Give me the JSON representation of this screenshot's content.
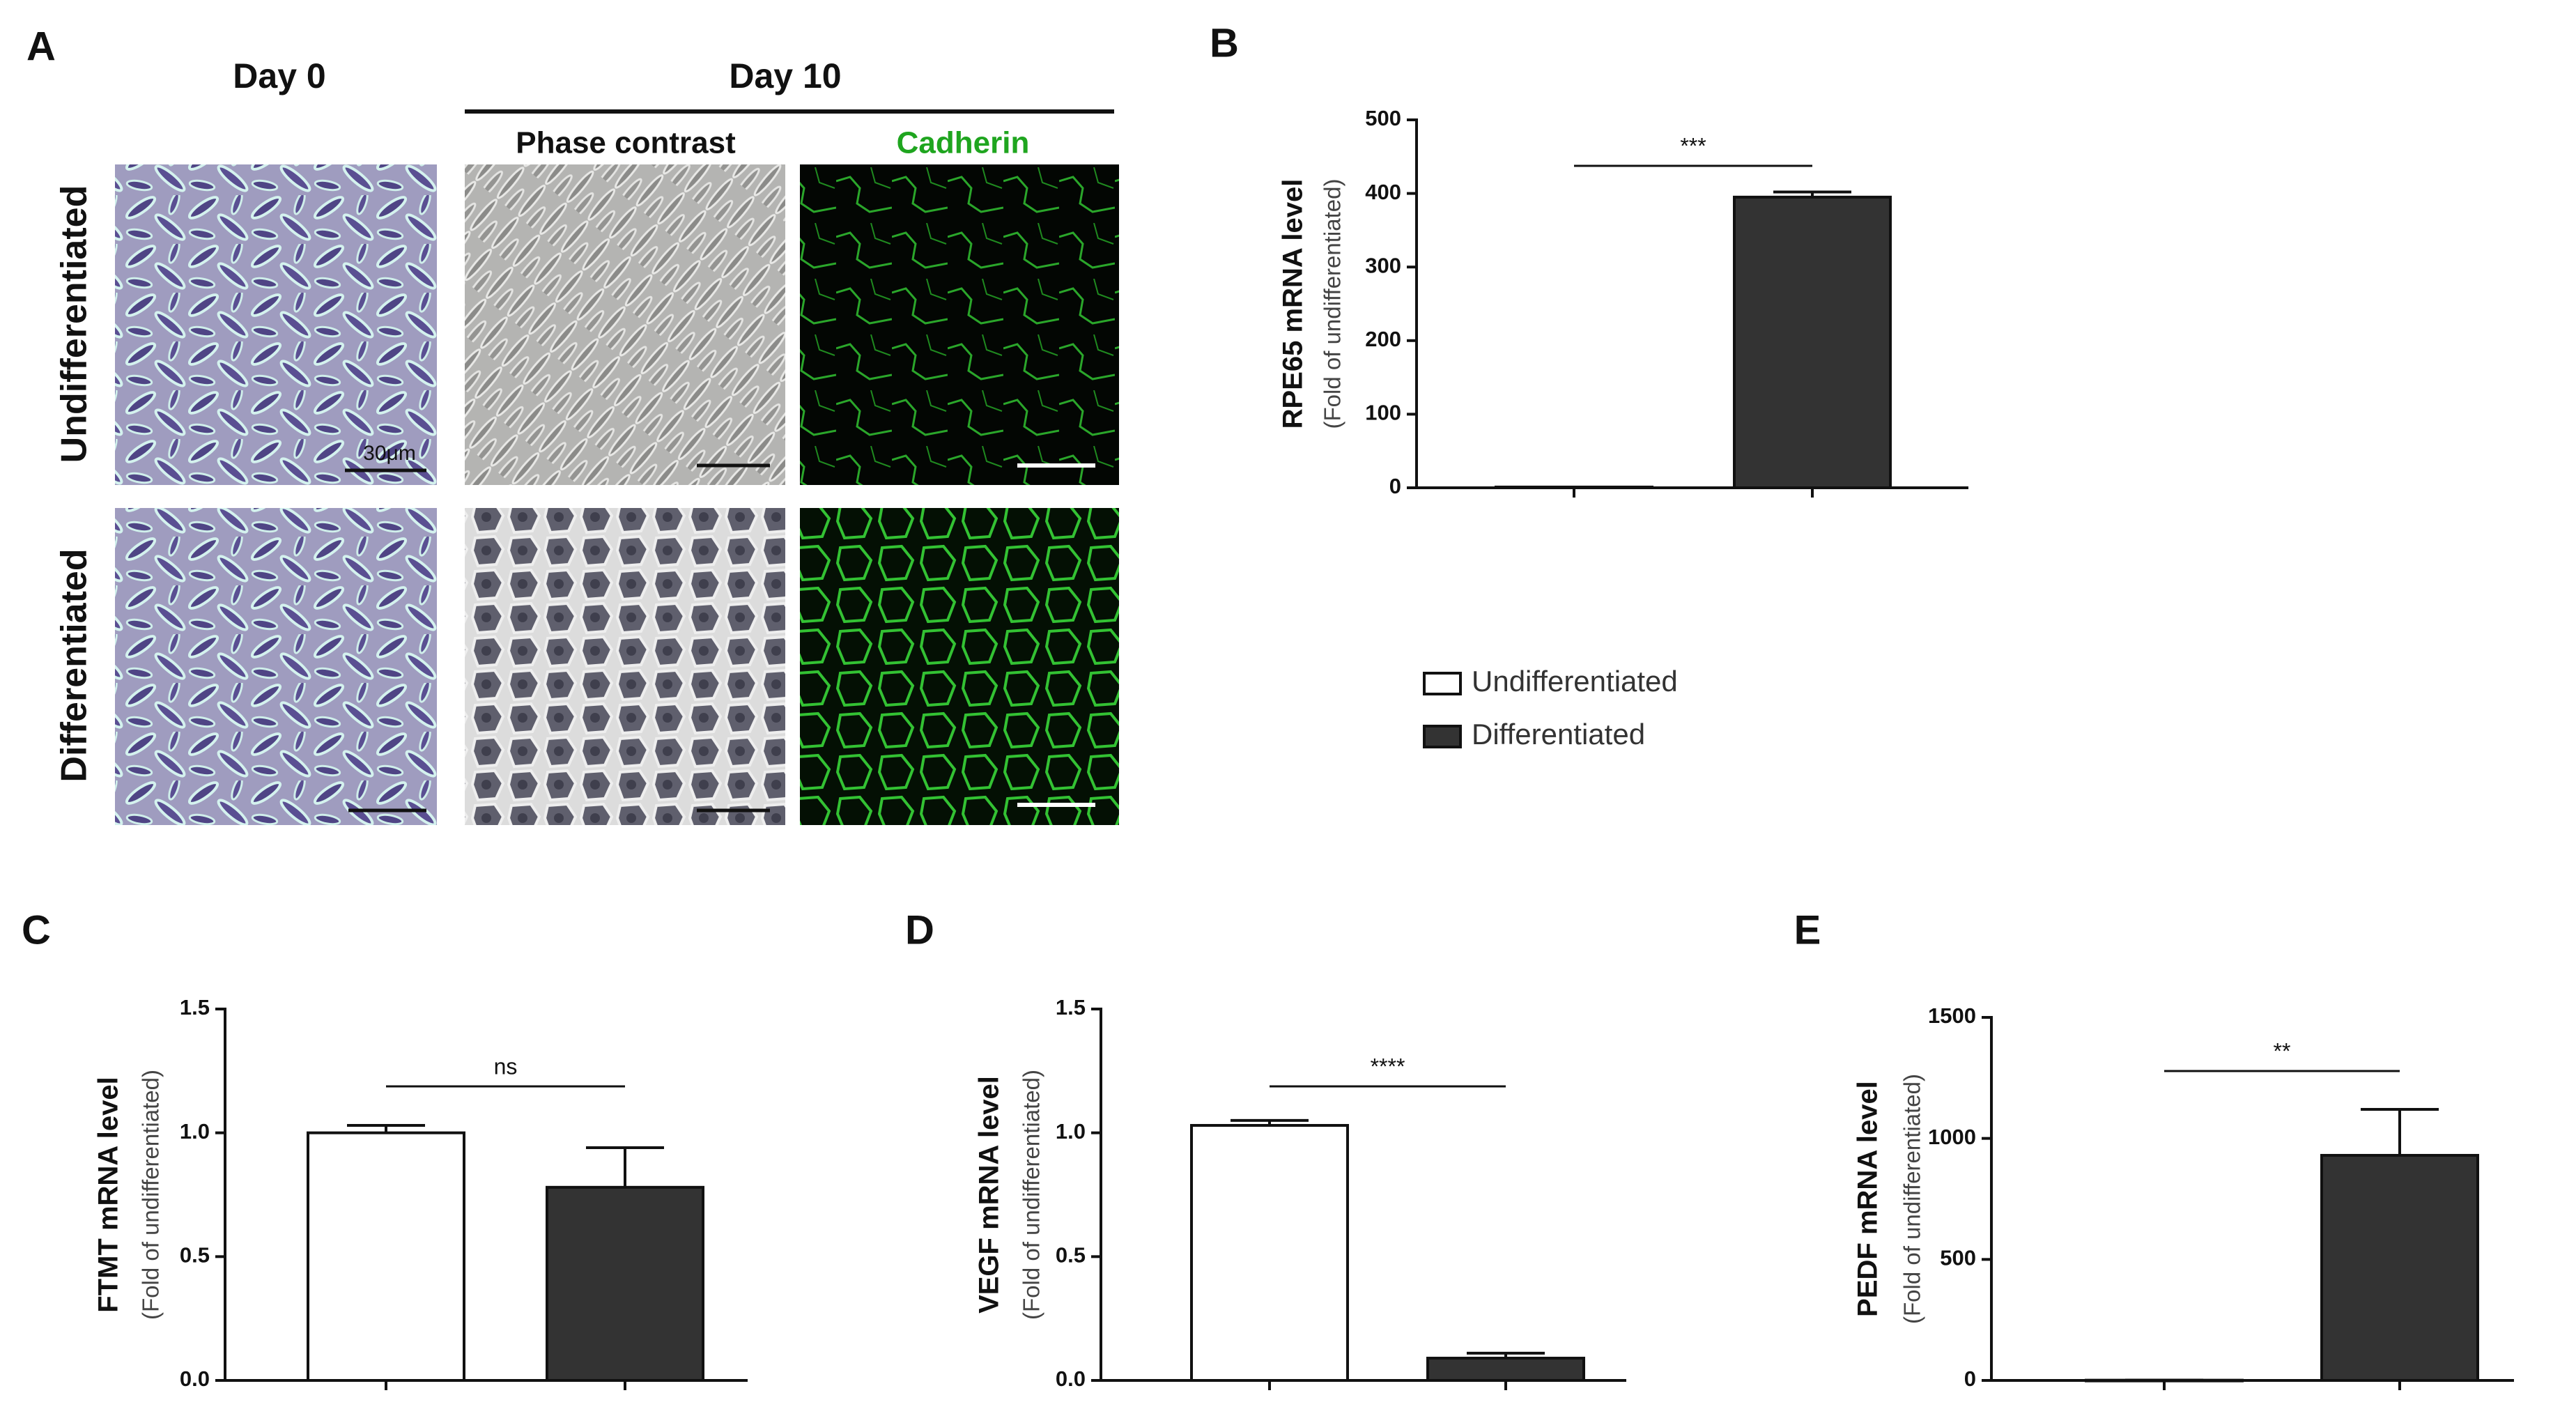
{
  "panel_a": {
    "label": "A",
    "day0": "Day 0",
    "day10": "Day 10",
    "phase": "Phase contrast",
    "cadherin": "Cadherin",
    "row1": "Undifferentiated",
    "row2": "Differentiated",
    "scale": "30μm"
  },
  "chart_data": [
    {
      "type": "bar",
      "panel": "B",
      "ylabel": "RPE65 mRNA level",
      "ylabel_sub": "(Fold of undifferentiated)",
      "categories": [
        null,
        null
      ],
      "series": [
        {
          "name": "Undifferentiated",
          "color": "#ffffff",
          "values": [
            1,
            null
          ],
          "errors": [
            0,
            null
          ]
        },
        {
          "name": "Differentiated",
          "color": "#333333",
          "values": [
            null,
            395
          ],
          "errors": [
            null,
            7
          ]
        }
      ],
      "ylim": [
        0,
        500
      ],
      "yticks": [
        0,
        100,
        200,
        300,
        400,
        500
      ],
      "significance": "***",
      "legend": true
    },
    {
      "type": "bar",
      "panel": "C",
      "ylabel": "FTMT mRNA level",
      "ylabel_sub": "(Fold of undifferentiated)",
      "categories": [
        null,
        null
      ],
      "series": [
        {
          "name": "Undifferentiated",
          "color": "#ffffff",
          "values": [
            1.0,
            null
          ],
          "errors": [
            0.03,
            null
          ]
        },
        {
          "name": "Differentiated",
          "color": "#333333",
          "values": [
            null,
            0.78
          ],
          "errors": [
            null,
            0.16
          ]
        }
      ],
      "ylim": [
        0,
        1.5
      ],
      "yticks": [
        {
          "value": 0,
          "label": "0.0"
        },
        0.5,
        {
          "value": 1,
          "label": "1.0"
        },
        1.5
      ],
      "significance": "ns"
    },
    {
      "type": "bar",
      "panel": "D",
      "ylabel": "VEGF mRNA level",
      "ylabel_sub": "(Fold of undifferentiated)",
      "categories": [
        null,
        null
      ],
      "series": [
        {
          "name": "Undifferentiated",
          "color": "#ffffff",
          "values": [
            1.03,
            null
          ],
          "errors": [
            0.02,
            null
          ]
        },
        {
          "name": "Differentiated",
          "color": "#333333",
          "values": [
            null,
            0.09
          ],
          "errors": [
            null,
            0.02
          ]
        }
      ],
      "ylim": [
        0,
        1.5
      ],
      "yticks": [
        {
          "value": 0,
          "label": "0.0"
        },
        0.5,
        {
          "value": 1,
          "label": "1.0"
        },
        1.5
      ],
      "significance": "****"
    },
    {
      "type": "bar",
      "panel": "E",
      "ylabel": "PEDF mRNA level",
      "ylabel_sub": "(Fold of undifferentiated)",
      "categories": [
        null,
        null
      ],
      "series": [
        {
          "name": "Undifferentiated",
          "color": "#ffffff",
          "values": [
            1,
            null
          ],
          "errors": [
            0,
            null
          ]
        },
        {
          "name": "Differentiated",
          "color": "#333333",
          "values": [
            null,
            930
          ],
          "errors": [
            null,
            190
          ]
        }
      ],
      "ylim": [
        0,
        1500
      ],
      "yticks": [
        0,
        500,
        1000,
        1500
      ],
      "significance": "**"
    }
  ]
}
